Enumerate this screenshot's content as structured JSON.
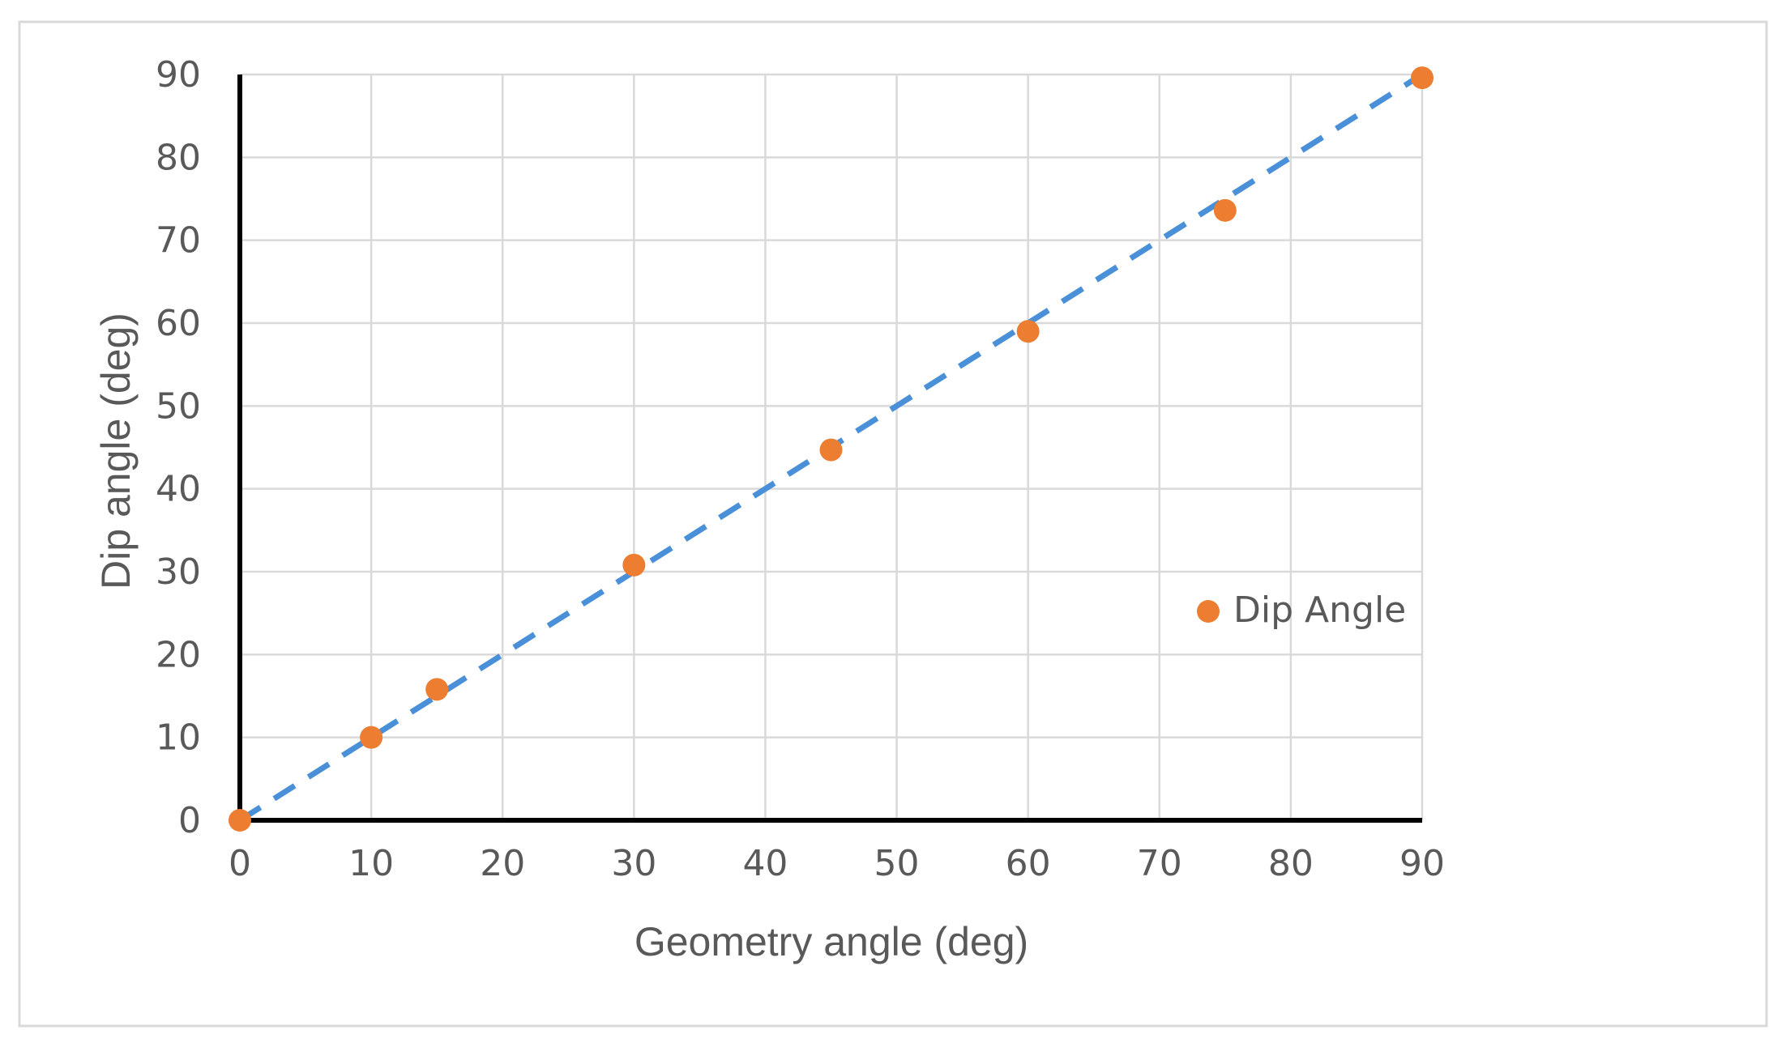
{
  "chart_data": {
    "type": "scatter",
    "xlabel": "Geometry angle (deg)",
    "ylabel": "Dip angle (deg)",
    "xlim": [
      0,
      90
    ],
    "ylim": [
      0,
      90
    ],
    "x_ticks": [
      0,
      10,
      20,
      30,
      40,
      50,
      60,
      70,
      80,
      90
    ],
    "y_ticks": [
      0,
      10,
      20,
      30,
      40,
      50,
      60,
      70,
      80,
      90
    ],
    "grid": true,
    "legend_position": "right",
    "series": [
      {
        "name": "Dip Angle",
        "color": "#ed7d31",
        "marker": "circle",
        "points": [
          {
            "x": 0,
            "y": 0
          },
          {
            "x": 10,
            "y": 10
          },
          {
            "x": 15,
            "y": 15.8
          },
          {
            "x": 30,
            "y": 30.8
          },
          {
            "x": 45,
            "y": 44.7
          },
          {
            "x": 60,
            "y": 59
          },
          {
            "x": 75,
            "y": 73.6
          },
          {
            "x": 90,
            "y": 89.6
          }
        ]
      }
    ],
    "trendline": {
      "style": "dashed",
      "color": "#4a90d9",
      "from": [
        0,
        0
      ],
      "to": [
        90,
        90
      ]
    }
  }
}
